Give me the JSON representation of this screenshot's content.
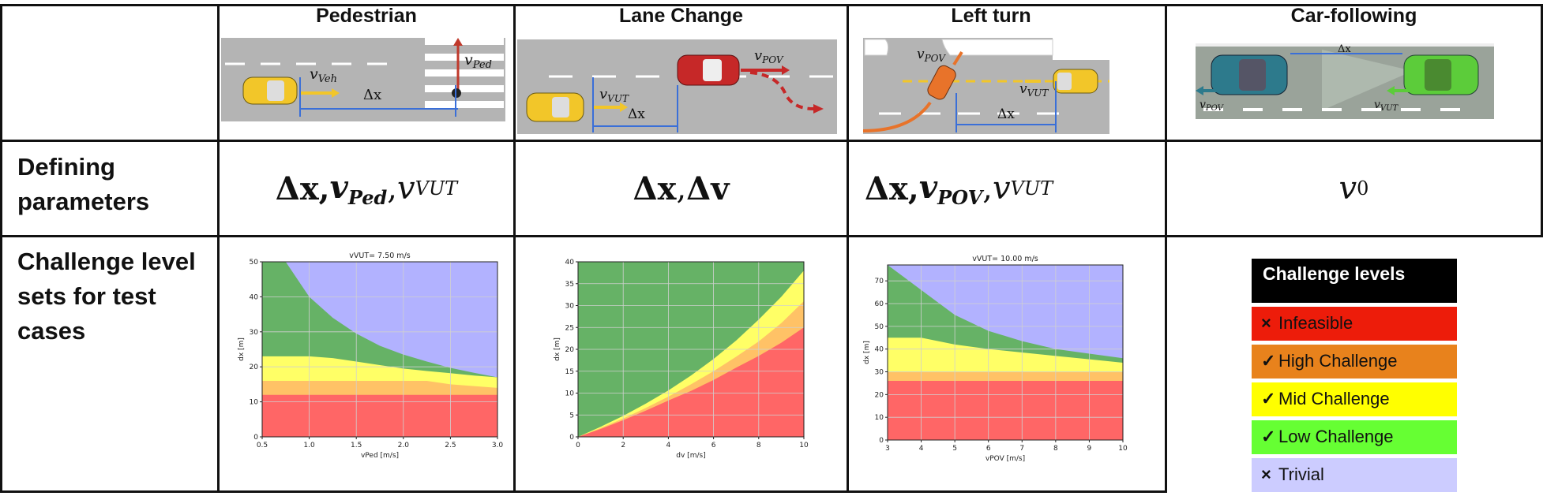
{
  "headers": [
    "Pedestrian",
    "Lane Change",
    "Left turn",
    "Car-following"
  ],
  "row_labels": {
    "defining": [
      "Defining",
      "parameters"
    ],
    "challenge": [
      "Challenge level",
      "sets for test",
      "cases"
    ]
  },
  "scenes": {
    "pedestrian": {
      "v_label": "v",
      "v_sub": "Veh",
      "ped_label": "v",
      "ped_sub": "Ped",
      "dx": "Δx"
    },
    "lane_change": {
      "vut": "v",
      "vut_sub": "VUT",
      "pov": "v",
      "pov_sub": "POV",
      "dx": "Δx"
    },
    "left_turn": {
      "pov": "v",
      "pov_sub": "POV",
      "vut": "v",
      "vut_sub": "VUT",
      "dx": "Δx"
    },
    "car_following": {
      "pov": "v",
      "pov_sub": "POV",
      "vut": "v",
      "vut_sub": "VUT",
      "dx": "Δx"
    }
  },
  "formulas": {
    "pedestrian": {
      "a": "Δx, ",
      "b": "v",
      "b_sub": "Ped",
      "c": ", ",
      "d": "v",
      "d_sub": "VUT"
    },
    "lane_change": {
      "a": "Δx",
      "b": ", ",
      "c": "Δv"
    },
    "left_turn": {
      "a": "Δx, ",
      "b": "v",
      "b_sub": "POV",
      "c": ", ",
      "d": "v",
      "d_sub": "VUT"
    },
    "car_following": {
      "a": "v",
      "a_sub": "0"
    }
  },
  "colors": {
    "infeasible": "#ff6666",
    "high": "#ffc266",
    "mid": "#ffff66",
    "low": "#66b266",
    "trivial": "#b2b2ff",
    "road": "#b4b4b4",
    "grid": "#d0d0d0"
  },
  "chart_data": [
    {
      "type": "area",
      "title": "vVUT= 7.50 m/s",
      "xlabel": "vPed [m/s]",
      "ylabel": "dx [m]",
      "xlim": [
        0.5,
        3.0
      ],
      "ylim": [
        0,
        50
      ],
      "xticks": [
        "0.5",
        "1.0",
        "1.5",
        "2.0",
        "2.5",
        "3.0"
      ],
      "yticks": [
        "0",
        "10",
        "20",
        "30",
        "40",
        "50"
      ],
      "x": [
        0.5,
        0.75,
        1.0,
        1.25,
        1.5,
        1.75,
        2.0,
        2.25,
        2.5,
        2.75,
        3.0
      ],
      "series": [
        {
          "name": "Infeasible",
          "values": [
            12,
            12,
            12,
            12,
            12,
            12,
            12,
            12,
            12,
            12,
            12
          ]
        },
        {
          "name": "High Challenge",
          "values": [
            16,
            16,
            16,
            16,
            16,
            16,
            16,
            16,
            15,
            14.5,
            14
          ]
        },
        {
          "name": "Mid Challenge",
          "values": [
            23,
            23,
            23,
            22.5,
            21.5,
            20.5,
            19.5,
            18.8,
            18.2,
            17.5,
            17
          ]
        },
        {
          "name": "Low Challenge",
          "values": [
            50,
            50,
            40,
            34,
            29.5,
            26,
            23.5,
            21.5,
            19.7,
            18.3,
            17
          ]
        }
      ],
      "grid": true
    },
    {
      "type": "area",
      "title": "",
      "xlabel": "dv [m/s]",
      "ylabel": "dx [m]",
      "xlim": [
        0,
        10
      ],
      "ylim": [
        0,
        40
      ],
      "xticks": [
        "0",
        "2",
        "4",
        "6",
        "8",
        "10"
      ],
      "yticks": [
        "0",
        "5",
        "10",
        "15",
        "20",
        "25",
        "30",
        "35",
        "40"
      ],
      "x": [
        0,
        1,
        2,
        3,
        4,
        5,
        6,
        7,
        8,
        9,
        10
      ],
      "series": [
        {
          "name": "Infeasible",
          "values": [
            0,
            1.8,
            3.8,
            6,
            8.3,
            10.5,
            13,
            15.8,
            18.5,
            21.5,
            25
          ]
        },
        {
          "name": "High Challenge",
          "values": [
            0,
            2,
            4.2,
            6.6,
            9.2,
            12,
            15,
            18.3,
            21.8,
            26,
            31
          ]
        },
        {
          "name": "Mid Challenge",
          "values": [
            0,
            2.3,
            4.8,
            7.6,
            10.6,
            14,
            17.8,
            22,
            26.8,
            32,
            38
          ]
        },
        {
          "name": "Low Challenge",
          "values": [
            40,
            40,
            40,
            40,
            40,
            40,
            40,
            40,
            40,
            40,
            40
          ]
        }
      ],
      "grid": true
    },
    {
      "type": "area",
      "title": "vVUT= 10.00 m/s",
      "xlabel": "vPOV [m/s]",
      "ylabel": "dx [m]",
      "xlim": [
        3,
        10
      ],
      "ylim": [
        0,
        77
      ],
      "xticks": [
        "3",
        "4",
        "5",
        "6",
        "7",
        "8",
        "9",
        "10"
      ],
      "yticks": [
        "0",
        "10",
        "20",
        "30",
        "40",
        "50",
        "60",
        "70"
      ],
      "x": [
        3,
        4,
        5,
        6,
        7,
        8,
        9,
        10
      ],
      "series": [
        {
          "name": "Infeasible",
          "values": [
            26,
            26,
            26,
            26,
            26,
            26,
            26,
            26
          ]
        },
        {
          "name": "High Challenge",
          "values": [
            30,
            30,
            30,
            30,
            30,
            30,
            30,
            30
          ]
        },
        {
          "name": "Mid Challenge",
          "values": [
            45,
            45,
            42,
            40,
            38.5,
            37,
            35.5,
            34
          ]
        },
        {
          "name": "Low Challenge",
          "values": [
            77,
            66,
            55,
            48,
            43.5,
            40,
            38,
            36
          ]
        }
      ],
      "grid": true
    }
  ],
  "legend": {
    "title": "Challenge levels",
    "items": [
      {
        "mark": "×",
        "label": "Infeasible",
        "color": "#ed1c0a"
      },
      {
        "mark": "✓",
        "label": "High Challenge",
        "color": "#e8821c"
      },
      {
        "mark": "✓",
        "label": "Mid Challenge",
        "color": "#ffff00"
      },
      {
        "mark": "✓",
        "label": "Low Challenge",
        "color": "#66ff33"
      },
      {
        "mark": "×",
        "label": "Trivial",
        "color": "#ccccff"
      }
    ]
  }
}
